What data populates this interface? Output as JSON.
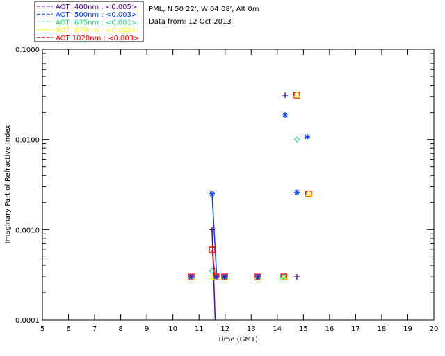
{
  "chart_data": {
    "type": "scatter",
    "title": "PML, N 50 22', W 04 08', Alt 0m",
    "subtitle": "Data from: 12 Oct 2013",
    "xlabel": "Time (GMT)",
    "ylabel": "Imaginary Part of Refractive Index",
    "xlim": [
      5,
      20
    ],
    "ylim": [
      0.0001,
      0.1
    ],
    "yscale": "log",
    "xticks": [
      "5",
      "6",
      "7",
      "8",
      "9",
      "10",
      "11",
      "12",
      "13",
      "14",
      "15",
      "16",
      "17",
      "18",
      "19",
      "20"
    ],
    "yticks": [
      "0.0001",
      "0.0010",
      "0.0100",
      "0.1000"
    ],
    "legend_placement": "top-left outside",
    "series": [
      {
        "name": "AOT  400nm : <0.005>",
        "color": "#5a00a0",
        "marker": "plus",
        "x": [
          11.5,
          14.3,
          14.75,
          10.7,
          11.65,
          11.98,
          13.26
        ],
        "y": [
          0.001,
          0.031,
          0.0003,
          0.0003,
          0.0003,
          0.0003,
          0.0003
        ],
        "line": {
          "x": [
            11.5,
            11.62
          ],
          "y": [
            0.001,
            0.0001
          ]
        }
      },
      {
        "name": "AOT  500nm : <0.003>",
        "color": "#0040ff",
        "marker": "asterisk",
        "x": [
          11.5,
          14.3,
          14.75,
          15.15,
          10.7,
          11.65,
          11.98,
          13.26
        ],
        "y": [
          0.0025,
          0.0188,
          0.0026,
          0.0107,
          0.0003,
          0.0003,
          0.0003,
          0.0003
        ],
        "line": {
          "x": [
            11.5,
            11.68
          ],
          "y": [
            0.0025,
            0.0003
          ]
        }
      },
      {
        "name": "AOT  675nm : <0.001>",
        "color": "#00e070",
        "marker": "diamond",
        "x": [
          11.5,
          14.75,
          10.7,
          11.65,
          11.98,
          13.26,
          14.25
        ],
        "y": [
          0.00035,
          0.01,
          0.0003,
          0.0003,
          0.0003,
          0.0003,
          0.0003
        ],
        "line": null
      },
      {
        "name": "AOT  870nm : <0.003>",
        "color": "#ffff00",
        "marker": "triangle",
        "x": [
          11.5,
          10.7,
          11.65,
          11.98,
          13.26,
          14.25,
          14.75,
          15.2
        ],
        "y": [
          0.0003,
          0.0003,
          0.0003,
          0.0003,
          0.0003,
          0.0003,
          0.031,
          0.0025
        ],
        "line": null
      },
      {
        "name": "AOT 1020nm : <0.003>",
        "color": "#ff0000",
        "marker": "square",
        "x": [
          11.5,
          14.75,
          15.2,
          10.7,
          11.65,
          11.98,
          13.26,
          14.25
        ],
        "y": [
          0.0006,
          0.031,
          0.0025,
          0.0003,
          0.0003,
          0.0003,
          0.0003,
          0.0003
        ],
        "line": {
          "x": [
            11.5,
            11.62
          ],
          "y": [
            0.0006,
            0.0003
          ]
        }
      }
    ]
  }
}
